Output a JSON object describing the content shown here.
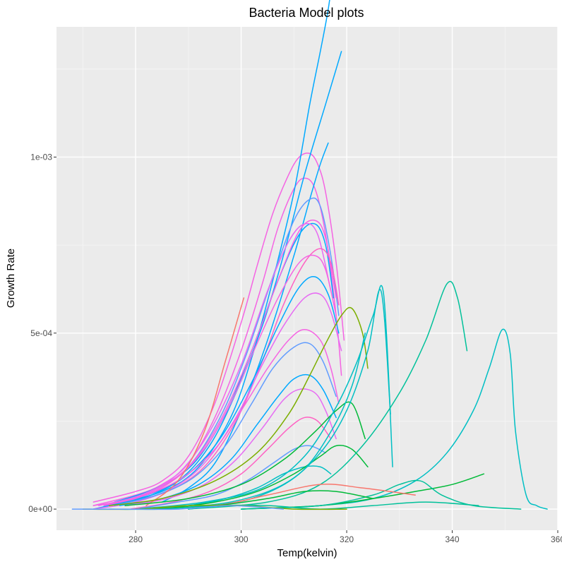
{
  "chart_data": {
    "type": "line",
    "title": "Bacteria Model plots",
    "xlabel": "Temp(kelvin)",
    "ylabel": "Growth Rate",
    "xlim": [
      265,
      360
    ],
    "ylim": [
      -6e-05,
      0.00137
    ],
    "x_ticks": [
      280,
      300,
      320,
      340,
      360
    ],
    "x_tick_labels": [
      "280",
      "300",
      "320",
      "340",
      "360"
    ],
    "y_ticks": [
      0,
      0.0005,
      0.001
    ],
    "y_tick_labels": [
      "0e+00",
      "5e-04",
      "1e-03"
    ],
    "grid": true,
    "legend": "none",
    "series_colors": [
      "#F8766D",
      "#00BA38",
      "#00BFC4",
      "#619CFF",
      "#F564E3",
      "#00A9FF",
      "#00C19A",
      "#E76BF3",
      "#7CAE00",
      "#FF61C3"
    ],
    "series": [
      {
        "x": [
          272,
          280,
          285,
          290,
          295,
          300,
          303,
          306,
          309,
          311,
          313,
          314.5,
          316,
          318,
          319.5
        ],
        "y": [
          2e-05,
          5e-05,
          8e-05,
          0.00015,
          0.0003,
          0.00053,
          0.00069,
          0.00084,
          0.00095,
          0.001,
          0.00101,
          0.00098,
          0.0009,
          0.0007,
          0.00048
        ],
        "color": "#F564E3"
      },
      {
        "x": [
          272,
          280,
          285,
          290,
          295,
          300,
          304,
          307,
          310,
          312,
          314,
          316,
          318,
          319
        ],
        "y": [
          1e-05,
          4e-05,
          7e-05,
          0.00013,
          0.00026,
          0.00045,
          0.00064,
          0.0008,
          0.00091,
          0.00094,
          0.00091,
          0.00078,
          0.00055,
          0.00038
        ],
        "color": "#F564E3"
      },
      {
        "x": [
          274,
          285,
          292,
          298,
          302,
          306,
          310,
          313,
          315,
          316.5,
          317.5
        ],
        "y": [
          1e-05,
          5e-05,
          0.00012,
          0.00026,
          0.00043,
          0.00065,
          0.0009,
          0.00115,
          0.0013,
          0.00142,
          0.00153
        ],
        "color": "#00A9FF"
      },
      {
        "x": [
          272,
          280,
          288,
          294,
          299,
          304,
          308,
          312,
          316,
          318,
          319
        ],
        "y": [
          0,
          3e-05,
          8e-05,
          0.00018,
          0.00033,
          0.00052,
          0.00072,
          0.00095,
          0.00115,
          0.00125,
          0.0013
        ],
        "color": "#00A9FF"
      },
      {
        "x": [
          285,
          290,
          295,
          300,
          305,
          310,
          313,
          315,
          316.5
        ],
        "y": [
          2e-05,
          6e-05,
          0.00013,
          0.00028,
          0.00048,
          0.00072,
          0.00088,
          0.00098,
          0.00104
        ],
        "color": "#00A9FF"
      },
      {
        "x": [
          275,
          283,
          290,
          296,
          301,
          306,
          310,
          313,
          315,
          317,
          318.5
        ],
        "y": [
          1e-05,
          5e-05,
          0.00012,
          0.00026,
          0.00044,
          0.00066,
          0.00082,
          0.00088,
          0.00086,
          0.00072,
          0.00055
        ],
        "color": "#619CFF"
      },
      {
        "x": [
          276,
          284,
          291,
          297,
          302,
          307,
          311,
          314,
          316,
          317.5
        ],
        "y": [
          2e-05,
          6e-05,
          0.00013,
          0.00027,
          0.00045,
          0.00065,
          0.00078,
          0.00081,
          0.00075,
          0.0006
        ],
        "color": "#00A9FF"
      },
      {
        "x": [
          275,
          283,
          290,
          296,
          302,
          307,
          311,
          314,
          316,
          318
        ],
        "y": [
          1e-05,
          5e-05,
          0.00012,
          0.00025,
          0.00045,
          0.00065,
          0.00079,
          0.00082,
          0.00077,
          0.0006
        ],
        "color": "#F564E3"
      },
      {
        "x": [
          273,
          281,
          288,
          294,
          300,
          305,
          309,
          312,
          314.5,
          317
        ],
        "y": [
          1e-05,
          4e-05,
          0.0001,
          0.00022,
          0.00041,
          0.00062,
          0.00076,
          0.00081,
          0.00078,
          0.00062
        ],
        "color": "#E76BF3"
      },
      {
        "x": [
          278,
          286,
          293,
          299,
          304,
          308,
          312,
          315,
          317,
          318.5
        ],
        "y": [
          2e-05,
          5e-05,
          0.00012,
          0.00025,
          0.00042,
          0.00058,
          0.0007,
          0.00074,
          0.0007,
          0.00058
        ],
        "color": "#FF61C3"
      },
      {
        "x": [
          272,
          280,
          287,
          293,
          298,
          303,
          307,
          311,
          314,
          316,
          318
        ],
        "y": [
          1e-05,
          3e-05,
          8e-05,
          0.00017,
          0.0003,
          0.00047,
          0.0006,
          0.0007,
          0.00072,
          0.00068,
          0.00055
        ],
        "color": "#F564E3"
      },
      {
        "x": [
          275,
          283,
          290,
          296,
          302,
          307,
          311,
          314,
          316.5,
          318.5
        ],
        "y": [
          1e-05,
          4e-05,
          0.0001,
          0.0002,
          0.00036,
          0.00052,
          0.00063,
          0.00066,
          0.00061,
          0.0005
        ],
        "color": "#00A9FF"
      },
      {
        "x": [
          272,
          280,
          287,
          293,
          299,
          304,
          308,
          312,
          315,
          317,
          319
        ],
        "y": [
          0,
          2e-05,
          6e-05,
          0.00013,
          0.00026,
          0.00041,
          0.00052,
          0.0006,
          0.00061,
          0.00056,
          0.00045
        ],
        "color": "#E76BF3"
      },
      {
        "x": [
          274,
          282,
          289,
          295,
          300,
          305,
          309,
          312,
          315,
          317,
          318.5
        ],
        "y": [
          1e-05,
          4e-05,
          9e-05,
          0.00017,
          0.00028,
          0.0004,
          0.00048,
          0.00051,
          0.00048,
          0.0004,
          0.0003
        ],
        "color": "#F564E3"
      },
      {
        "x": [
          276,
          284,
          291,
          297,
          302,
          306,
          310,
          313,
          315.5,
          318
        ],
        "y": [
          1e-05,
          4e-05,
          9e-05,
          0.00018,
          0.0003,
          0.0004,
          0.00046,
          0.00047,
          0.00042,
          0.00032
        ],
        "color": "#619CFF"
      },
      {
        "x": [
          277,
          285,
          292,
          298,
          303,
          307,
          310,
          313,
          315.5,
          318
        ],
        "y": [
          1e-05,
          3e-05,
          7e-05,
          0.00014,
          0.00024,
          0.00032,
          0.00037,
          0.00038,
          0.00034,
          0.00026
        ],
        "color": "#00A9FF"
      },
      {
        "x": [
          278,
          286,
          293,
          299,
          304,
          308,
          311,
          314,
          316,
          318
        ],
        "y": [
          1e-05,
          3e-05,
          7e-05,
          0.00014,
          0.00023,
          0.00031,
          0.00034,
          0.00033,
          0.00028,
          0.0002
        ],
        "color": "#E76BF3"
      },
      {
        "x": [
          279,
          287,
          294,
          300,
          305,
          309,
          312,
          314.5,
          317
        ],
        "y": [
          0,
          2e-05,
          5e-05,
          0.0001,
          0.00017,
          0.00023,
          0.00026,
          0.00025,
          0.0002
        ],
        "color": "#FF61C3"
      },
      {
        "x": [
          280,
          288,
          295,
          301,
          306,
          310,
          313,
          316
        ],
        "y": [
          0,
          2e-05,
          4e-05,
          8e-05,
          0.00013,
          0.00017,
          0.00018,
          0.00016
        ],
        "color": "#619CFF"
      },
      {
        "x": [
          282,
          290,
          297,
          303,
          308,
          312,
          315,
          317
        ],
        "y": [
          0,
          1e-05,
          3e-05,
          6e-05,
          0.0001,
          0.00012,
          0.00012,
          0.0001
        ],
        "color": "#00BFC4"
      },
      {
        "x": [
          282,
          288,
          293,
          297,
          300.5
        ],
        "y": [
          1e-05,
          8e-05,
          0.00022,
          0.00042,
          0.0006
        ],
        "color": "#F8766D"
      },
      {
        "x": [
          275,
          285,
          295,
          303,
          309,
          313,
          316,
          319,
          321,
          323,
          324
        ],
        "y": [
          1e-05,
          3e-05,
          8e-05,
          0.00016,
          0.00027,
          0.00038,
          0.00047,
          0.00055,
          0.00057,
          0.0005,
          0.0004
        ],
        "color": "#7CAE00"
      },
      {
        "x": [
          278,
          290,
          300,
          308,
          314,
          318,
          321,
          323.5
        ],
        "y": [
          1e-05,
          3e-05,
          7e-05,
          0.00014,
          0.00022,
          0.00028,
          0.0003,
          0.0002
        ],
        "color": "#00BA38"
      },
      {
        "x": [
          285,
          295,
          303,
          310,
          315,
          318,
          321,
          324
        ],
        "y": [
          0,
          2e-05,
          5e-05,
          0.0001,
          0.00015,
          0.00018,
          0.00017,
          0.00012
        ],
        "color": "#00BA38"
      },
      {
        "x": [
          280,
          293,
          304,
          312,
          318,
          322,
          325,
          327,
          328.7
        ],
        "y": [
          0,
          2e-05,
          6e-05,
          0.00015,
          0.00029,
          0.00042,
          0.00055,
          0.00061,
          0.00012
        ],
        "color": "#00BFC4"
      },
      {
        "x": [
          285,
          298,
          308,
          315,
          320,
          324,
          326.5,
          328.3
        ],
        "y": [
          0,
          2e-05,
          7e-05,
          0.00016,
          0.00028,
          0.00045,
          0.00062,
          0.00027
        ],
        "color": "#00BFC4"
      },
      {
        "x": [
          290,
          302,
          311,
          317,
          321,
          323.5
        ],
        "y": [
          0,
          3e-05,
          0.0001,
          0.00022,
          0.00035,
          0.0005
        ],
        "color": "#00BFC4"
      },
      {
        "x": [
          290,
          305,
          315,
          323,
          330,
          335,
          339,
          341,
          342.8
        ],
        "y": [
          0,
          2e-05,
          7e-05,
          0.00018,
          0.00033,
          0.00048,
          0.00064,
          0.0006,
          0.00045
        ],
        "color": "#00C19A"
      },
      {
        "x": [
          300,
          315,
          325,
          333,
          339,
          344,
          347,
          349.5,
          351,
          352,
          354,
          356,
          358
        ],
        "y": [
          0,
          1e-05,
          3e-05,
          8e-05,
          0.00016,
          0.00028,
          0.0004,
          0.00051,
          0.00044,
          0.00022,
          4e-05,
          1e-05,
          0
        ],
        "color": "#00BFC4"
      },
      {
        "x": [
          300,
          315,
          325,
          333,
          340,
          346
        ],
        "y": [
          0,
          1e-05,
          3e-05,
          5e-05,
          7e-05,
          0.0001
        ],
        "color": "#00BA38"
      },
      {
        "x": [
          300,
          315,
          325,
          330,
          334,
          338,
          344,
          353
        ],
        "y": [
          0,
          1e-05,
          4e-05,
          7e-05,
          8e-05,
          4e-05,
          1e-05,
          0
        ],
        "color": "#00C19A"
      },
      {
        "x": [
          280,
          295,
          305,
          315,
          323,
          333
        ],
        "y": [
          0,
          1e-05,
          4e-05,
          7e-05,
          6e-05,
          4e-05
        ],
        "color": "#F8766D"
      },
      {
        "x": [
          282,
          295,
          305,
          312,
          318,
          325
        ],
        "y": [
          0,
          1e-05,
          3e-05,
          5e-05,
          5e-05,
          3e-05
        ],
        "color": "#00BA38"
      },
      {
        "x": [
          275,
          285,
          295,
          305,
          315,
          325,
          335,
          345
        ],
        "y": [
          0,
          0,
          1e-05,
          1e-05,
          0,
          1e-05,
          2e-05,
          1e-05
        ],
        "color": "#00C19A"
      },
      {
        "x": [
          270,
          280,
          290,
          300,
          310,
          320
        ],
        "y": [
          0,
          0,
          1e-05,
          1e-05,
          0,
          0
        ],
        "color": "#7CAE00"
      },
      {
        "x": [
          268,
          278,
          288,
          298,
          308
        ],
        "y": [
          0,
          0,
          0,
          1e-05,
          0
        ],
        "color": "#619CFF"
      }
    ]
  }
}
